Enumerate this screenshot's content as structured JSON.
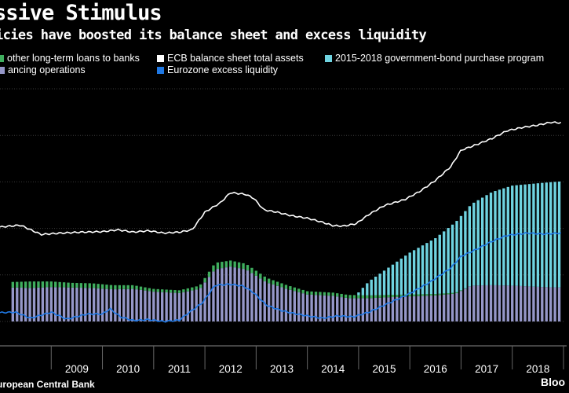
{
  "header": {
    "title": "ssive Stimulus",
    "subtitle": "icies have boosted its balance sheet and excess liquidity"
  },
  "legend": [
    {
      "label": "other long-term loans to banks",
      "color": "#3fae5e"
    },
    {
      "label": "ancing operations",
      "color": "#9597c8"
    },
    {
      "label": "ECB balance sheet total assets",
      "color": "#ffffff"
    },
    {
      "label": "Eurozone excess liquidity",
      "color": "#1f78e4"
    },
    {
      "label": "2015-2018 government-bond purchase program",
      "color": "#6fd3e0"
    }
  ],
  "footer": {
    "source": "uropean Central Bank",
    "brand": "Bloo"
  },
  "chart_data": {
    "type": "bar",
    "x_tick_labels": [
      "2009",
      "2010",
      "2011",
      "2012",
      "2013",
      "2014",
      "2015",
      "2016",
      "2017",
      "2018"
    ],
    "x_range": [
      2008.0,
      2019.0
    ],
    "ylim": [
      0,
      5
    ],
    "grid": true,
    "series": [
      {
        "name": "ancing operations",
        "kind": "stacked-bar",
        "color": "#9597c8",
        "points": [
          [
            2008.3,
            0.73
          ],
          [
            2008.6,
            0.72
          ],
          [
            2009.0,
            0.74
          ],
          [
            2009.4,
            0.73
          ],
          [
            2009.8,
            0.72
          ],
          [
            2010.2,
            0.69
          ],
          [
            2010.6,
            0.7
          ],
          [
            2011.0,
            0.64
          ],
          [
            2011.5,
            0.61
          ],
          [
            2011.9,
            0.7
          ],
          [
            2012.2,
            1.12
          ],
          [
            2012.5,
            1.18
          ],
          [
            2012.8,
            1.12
          ],
          [
            2013.2,
            0.84
          ],
          [
            2013.6,
            0.7
          ],
          [
            2014.0,
            0.58
          ],
          [
            2014.5,
            0.55
          ],
          [
            2014.8,
            0.5
          ],
          [
            2015.2,
            0.5
          ],
          [
            2015.6,
            0.52
          ],
          [
            2016.0,
            0.54
          ],
          [
            2016.5,
            0.56
          ],
          [
            2016.9,
            0.6
          ],
          [
            2017.2,
            0.77
          ],
          [
            2017.6,
            0.78
          ],
          [
            2018.0,
            0.77
          ],
          [
            2018.6,
            0.74
          ],
          [
            2018.95,
            0.73
          ]
        ]
      },
      {
        "name": "other long-term loans to banks",
        "kind": "stacked-bar",
        "color": "#3fae5e",
        "points": [
          [
            2008.3,
            0.12
          ],
          [
            2008.6,
            0.14
          ],
          [
            2009.0,
            0.12
          ],
          [
            2009.4,
            0.1
          ],
          [
            2009.8,
            0.1
          ],
          [
            2010.2,
            0.09
          ],
          [
            2010.6,
            0.08
          ],
          [
            2011.0,
            0.06
          ],
          [
            2011.5,
            0.06
          ],
          [
            2011.9,
            0.07
          ],
          [
            2012.2,
            0.14
          ],
          [
            2012.5,
            0.13
          ],
          [
            2012.8,
            0.12
          ],
          [
            2013.2,
            0.1
          ],
          [
            2013.6,
            0.08
          ],
          [
            2014.0,
            0.07
          ],
          [
            2014.5,
            0.07
          ],
          [
            2014.8,
            0.07
          ],
          [
            2015.2,
            0.06
          ],
          [
            2015.6,
            0.05
          ],
          [
            2016.0,
            0.04
          ],
          [
            2016.5,
            0.03
          ],
          [
            2016.9,
            0.02
          ],
          [
            2017.2,
            0.0
          ],
          [
            2017.6,
            0.0
          ],
          [
            2018.0,
            0.0
          ],
          [
            2018.6,
            0.0
          ],
          [
            2018.95,
            0.0
          ]
        ]
      },
      {
        "name": "2015-2018 government-bond purchase program",
        "kind": "stacked-bar",
        "color": "#6fd3e0",
        "points": [
          [
            2008.3,
            0
          ],
          [
            2014.95,
            0
          ],
          [
            2015.2,
            0.3
          ],
          [
            2015.6,
            0.6
          ],
          [
            2016.0,
            0.9
          ],
          [
            2016.5,
            1.2
          ],
          [
            2016.9,
            1.52
          ],
          [
            2017.2,
            1.75
          ],
          [
            2017.6,
            2.0
          ],
          [
            2018.0,
            2.15
          ],
          [
            2018.6,
            2.24
          ],
          [
            2018.95,
            2.28
          ]
        ]
      },
      {
        "name": "ECB balance sheet total assets",
        "kind": "line",
        "color": "#ffffff",
        "points": [
          [
            2008.0,
            2.03
          ],
          [
            2008.4,
            2.07
          ],
          [
            2008.8,
            1.87
          ],
          [
            2009.2,
            1.9
          ],
          [
            2009.6,
            1.92
          ],
          [
            2010.0,
            1.93
          ],
          [
            2010.3,
            1.97
          ],
          [
            2010.6,
            1.92
          ],
          [
            2010.9,
            1.95
          ],
          [
            2011.2,
            1.9
          ],
          [
            2011.5,
            1.92
          ],
          [
            2011.75,
            1.97
          ],
          [
            2012.0,
            2.35
          ],
          [
            2012.3,
            2.55
          ],
          [
            2012.5,
            2.77
          ],
          [
            2012.8,
            2.73
          ],
          [
            2012.95,
            2.65
          ],
          [
            2013.15,
            2.4
          ],
          [
            2013.4,
            2.35
          ],
          [
            2013.7,
            2.27
          ],
          [
            2014.0,
            2.22
          ],
          [
            2014.3,
            2.13
          ],
          [
            2014.5,
            2.06
          ],
          [
            2014.7,
            2.05
          ],
          [
            2014.95,
            2.1
          ],
          [
            2015.2,
            2.3
          ],
          [
            2015.5,
            2.49
          ],
          [
            2015.9,
            2.62
          ],
          [
            2016.2,
            2.8
          ],
          [
            2016.5,
            3.03
          ],
          [
            2016.8,
            3.33
          ],
          [
            2017.0,
            3.68
          ],
          [
            2017.3,
            3.8
          ],
          [
            2017.6,
            3.93
          ],
          [
            2017.9,
            4.1
          ],
          [
            2018.2,
            4.17
          ],
          [
            2018.5,
            4.22
          ],
          [
            2018.75,
            4.28
          ],
          [
            2018.95,
            4.27
          ]
        ]
      },
      {
        "name": "Eurozone excess liquidity",
        "kind": "line",
        "color": "#1f78e4",
        "points": [
          [
            2008.0,
            0.19
          ],
          [
            2008.3,
            0.2
          ],
          [
            2008.6,
            0.07
          ],
          [
            2009.0,
            0.2
          ],
          [
            2009.3,
            0.05
          ],
          [
            2009.7,
            0.16
          ],
          [
            2010.0,
            0.16
          ],
          [
            2010.15,
            0.27
          ],
          [
            2010.35,
            0.1
          ],
          [
            2010.6,
            0.02
          ],
          [
            2010.9,
            0.04
          ],
          [
            2011.2,
            0.0
          ],
          [
            2011.5,
            0.03
          ],
          [
            2011.7,
            0.2
          ],
          [
            2011.95,
            0.4
          ],
          [
            2012.2,
            0.78
          ],
          [
            2012.5,
            0.8
          ],
          [
            2012.75,
            0.76
          ],
          [
            2012.95,
            0.62
          ],
          [
            2013.2,
            0.35
          ],
          [
            2013.45,
            0.25
          ],
          [
            2013.7,
            0.18
          ],
          [
            2014.0,
            0.12
          ],
          [
            2014.3,
            0.07
          ],
          [
            2014.6,
            0.12
          ],
          [
            2014.9,
            0.1
          ],
          [
            2015.2,
            0.2
          ],
          [
            2015.6,
            0.4
          ],
          [
            2016.0,
            0.6
          ],
          [
            2016.4,
            0.85
          ],
          [
            2016.8,
            1.15
          ],
          [
            2017.0,
            1.4
          ],
          [
            2017.3,
            1.55
          ],
          [
            2017.6,
            1.72
          ],
          [
            2017.9,
            1.85
          ],
          [
            2018.3,
            1.9
          ],
          [
            2018.6,
            1.88
          ],
          [
            2018.95,
            1.9
          ]
        ]
      }
    ]
  }
}
